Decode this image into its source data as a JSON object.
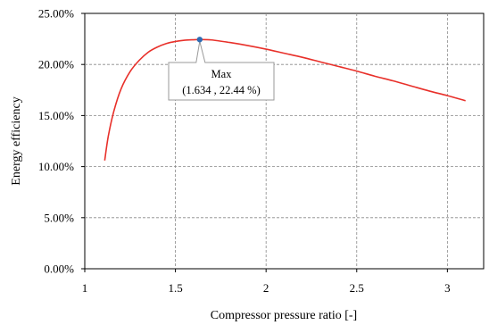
{
  "chart_data": {
    "type": "line",
    "xlabel": "Compressor pressure ratio [-]",
    "ylabel": "Energy efficiency",
    "xlim": [
      1,
      3.2
    ],
    "ylim": [
      0,
      25
    ],
    "x_ticks": [
      1,
      1.5,
      2,
      2.5,
      3
    ],
    "x_tick_labels": [
      "1",
      "1.5",
      "2",
      "2.5",
      "3"
    ],
    "y_ticks": [
      0,
      5,
      10,
      15,
      20,
      25
    ],
    "y_tick_labels": [
      "0.00%",
      "5.00%",
      "10.00%",
      "15.00%",
      "20.00%",
      "25.00%"
    ],
    "grid": true,
    "series": [
      {
        "color": "#e8302a",
        "x": [
          1.11,
          1.13,
          1.16,
          1.2,
          1.25,
          1.3,
          1.35,
          1.4,
          1.45,
          1.5,
          1.55,
          1.6,
          1.634,
          1.7,
          1.8,
          1.9,
          2.0,
          2.1,
          2.2,
          2.3,
          2.4,
          2.5,
          2.6,
          2.7,
          2.8,
          2.9,
          3.0,
          3.1
        ],
        "y": [
          10.6,
          13.0,
          15.4,
          17.6,
          19.3,
          20.4,
          21.2,
          21.7,
          22.05,
          22.25,
          22.37,
          22.42,
          22.44,
          22.4,
          22.15,
          21.85,
          21.5,
          21.1,
          20.7,
          20.25,
          19.8,
          19.35,
          18.85,
          18.4,
          17.9,
          17.4,
          16.95,
          16.45
        ]
      }
    ],
    "annotations": [
      {
        "x": 1.634,
        "y": 22.44,
        "line1": "Max",
        "line2": "(1.634 , 22.44 %)",
        "marker_color": "#2e6db4"
      }
    ]
  }
}
